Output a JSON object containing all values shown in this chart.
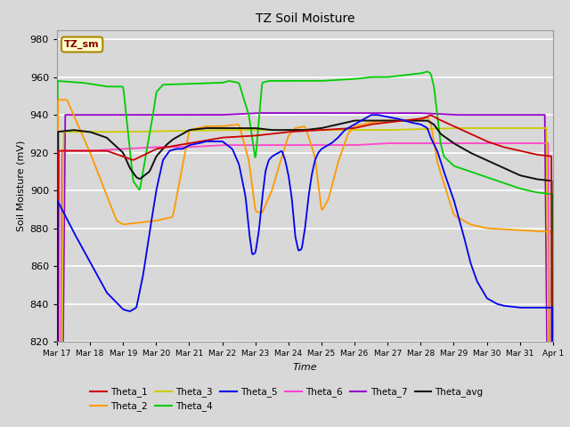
{
  "title": "TZ Soil Moisture",
  "xlabel": "Time",
  "ylabel": "Soil Moisture (mV)",
  "ylim": [
    820,
    985
  ],
  "yticks": [
    820,
    840,
    860,
    880,
    900,
    920,
    940,
    960,
    980
  ],
  "bg_color": "#d8d8d8",
  "plot_bg_color": "#d8d8d8",
  "series_colors": {
    "Theta_1": "#cc0000",
    "Theta_2": "#ff9900",
    "Theta_3": "#cccc00",
    "Theta_4": "#00cc00",
    "Theta_5": "#0000ee",
    "Theta_6": "#ff44cc",
    "Theta_7": "#9900cc",
    "Theta_avg": "#111111"
  },
  "tick_labels": [
    "Mar 17",
    "Mar 18",
    "Mar 19",
    "Mar 20",
    "Mar 21",
    "Mar 22",
    "Mar 23",
    "Mar 24",
    "Mar 25",
    "Mar 26",
    "Mar 27",
    "Mar 28",
    "Mar 29",
    "Mar 30",
    "Mar 31",
    "Apr 1"
  ],
  "annotation_label": "TZ_sm"
}
